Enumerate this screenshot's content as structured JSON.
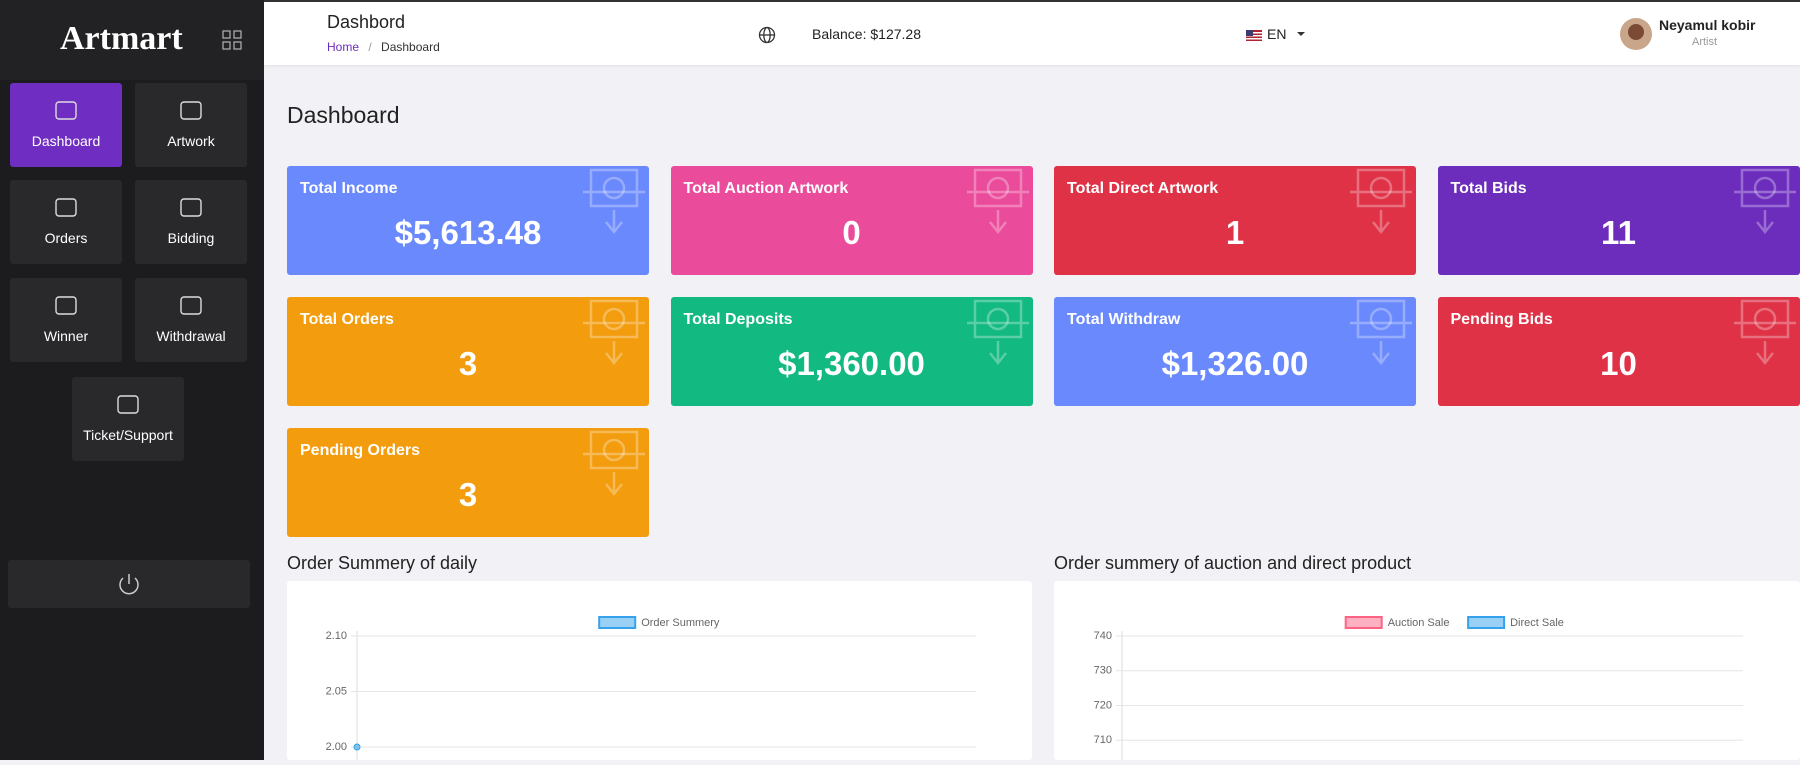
{
  "brand": "Artmart",
  "nav": [
    {
      "label": "Dashboard",
      "active": true
    },
    {
      "label": "Artwork",
      "active": false
    },
    {
      "label": "Orders",
      "active": false
    },
    {
      "label": "Bidding",
      "active": false
    },
    {
      "label": "Winner",
      "active": false
    },
    {
      "label": "Withdrawal",
      "active": false
    },
    {
      "label": "Ticket/Support",
      "active": false
    }
  ],
  "header": {
    "title": "Dashbord",
    "breadcrumb": [
      "Home",
      "Dashboard"
    ],
    "balance": "Balance: $127.28",
    "language": "EN",
    "user_name": "Neyamul kobir",
    "user_role": "Artist"
  },
  "page_title": "Dashboard",
  "cards": [
    {
      "label": "Total Income",
      "value": "$5,613.48",
      "color": "#6a89fd"
    },
    {
      "label": "Total Auction Artwork",
      "value": "0",
      "color": "#eb4b9b"
    },
    {
      "label": "Total Direct Artwork",
      "value": "1",
      "color": "#df3246"
    },
    {
      "label": "Total Bids",
      "value": "11",
      "color": "#6c2dbd"
    },
    {
      "label": "Total Orders",
      "value": "3",
      "color": "#f39c0e"
    },
    {
      "label": "Total Deposits",
      "value": "$1,360.00",
      "color": "#12b981"
    },
    {
      "label": "Total Withdraw",
      "value": "$1,326.00",
      "color": "#6a89fd"
    },
    {
      "label": "Pending Bids",
      "value": "10",
      "color": "#df3246"
    },
    {
      "label": "Pending Orders",
      "value": "3",
      "color": "#f39c0e"
    }
  ],
  "charts": [
    {
      "type": "line",
      "title": "Order Summery of daily",
      "series": [
        {
          "name": "Order Summery",
          "color": "#36a2eb",
          "values": [
            2
          ]
        }
      ],
      "ylim": [
        1.9,
        2.1
      ],
      "yticks": [
        {
          "value": 2.1,
          "label": "2.10"
        },
        {
          "value": 2.05,
          "label": "2.05"
        },
        {
          "value": 2.0,
          "label": "2.00"
        }
      ]
    },
    {
      "type": "line",
      "title": "Order summery of auction and direct product",
      "series": [
        {
          "name": "Auction Sale",
          "color": "#ff6384",
          "values": []
        },
        {
          "name": "Direct Sale",
          "color": "#36a2eb",
          "values": []
        }
      ],
      "ylim": [
        700,
        740
      ],
      "yticks": [
        740,
        730,
        720,
        710
      ]
    }
  ]
}
